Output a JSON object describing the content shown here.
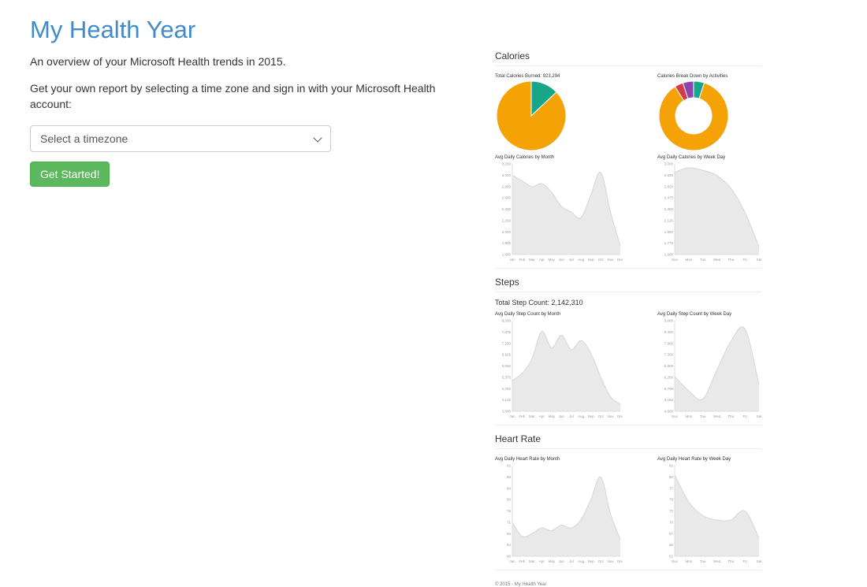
{
  "page": {
    "title": "My Health Year",
    "subtitle": "An overview of your Microsoft Health trends in 2015.",
    "instructions": "Get your own report by selecting a time zone and sign in with your Microsoft Health account:"
  },
  "form": {
    "timezone_placeholder": "Select a timezone",
    "submit_label": "Get Started!"
  },
  "report": {
    "sections": [
      {
        "header": "Calories"
      },
      {
        "header": "Steps",
        "total": "Total Step Count: 2,142,310"
      },
      {
        "header": "Heart Rate"
      }
    ],
    "footer": "© 2015 - My Health Year"
  },
  "colors": {
    "accent_blue": "#428bca",
    "button_green": "#5cb85c",
    "pie_orange": "#f5a206",
    "pie_teal": "#18a68b",
    "pie_red": "#d13b4b",
    "pie_purple": "#8e44ad",
    "area_fill": "#e9e9e9",
    "area_stroke": "#d6d6d6"
  },
  "chart_data": [
    {
      "type": "pie",
      "title": "Total Calories Burned: 923,294",
      "slices": [
        {
          "value": 13,
          "color": "#18a68b"
        },
        {
          "value": 87,
          "color": "#f5a206"
        }
      ]
    },
    {
      "type": "pie",
      "donut": true,
      "title": "Calories Break Down by Activities",
      "slices": [
        {
          "value": 5,
          "color": "#18a68b"
        },
        {
          "value": 86,
          "color": "#f5a206"
        },
        {
          "value": 4,
          "color": "#d13b4b"
        },
        {
          "value": 5,
          "color": "#8e44ad"
        }
      ]
    },
    {
      "type": "area",
      "title": "Avg Daily Calories by Month",
      "categories": [
        "Jan",
        "Feb",
        "Mar",
        "Apr",
        "May",
        "Jun",
        "Jul",
        "Aug",
        "Sep",
        "Oct",
        "Nov",
        "Dec"
      ],
      "values": [
        3000,
        2900,
        2800,
        2850,
        2700,
        2450,
        2350,
        2250,
        2650,
        3050,
        2350,
        1750
      ],
      "ylim": [
        1600,
        3200
      ]
    },
    {
      "type": "area",
      "title": "Avg Daily Calories by Week Day",
      "categories": [
        "Sun",
        "Mon",
        "Tue",
        "Wed",
        "Thu",
        "Fri",
        "Sat"
      ],
      "values": [
        2870,
        2940,
        2900,
        2820,
        2620,
        2250,
        1720
      ],
      "ylim": [
        1600,
        3000
      ]
    },
    {
      "type": "area",
      "title": "Avg Daily Step Count by Month",
      "categories": [
        "Jan",
        "Feb",
        "Mar",
        "Apr",
        "May",
        "Jun",
        "Jul",
        "Aug",
        "Sep",
        "Oct",
        "Nov",
        "Dec"
      ],
      "values": [
        5200,
        5600,
        6400,
        7900,
        7000,
        7700,
        6900,
        7400,
        6700,
        5400,
        4300,
        3900
      ],
      "ylim": [
        3500,
        8500
      ]
    },
    {
      "type": "area",
      "title": "Avg Daily Step Count by Week Day",
      "categories": [
        "Sun",
        "Mon",
        "Tue",
        "Wed",
        "Thu",
        "Fri",
        "Sat"
      ],
      "values": [
        6300,
        5600,
        5200,
        6600,
        8000,
        8600,
        5900
      ],
      "ylim": [
        4600,
        9000
      ]
    },
    {
      "type": "area",
      "title": "Avg Daily Heart Rate by Month",
      "categories": [
        "Jan",
        "Feb",
        "Mar",
        "Apr",
        "May",
        "Jun",
        "Jul",
        "Aug",
        "Sep",
        "Oct",
        "Nov",
        "Dec"
      ],
      "values": [
        72,
        67,
        68,
        70,
        69,
        71,
        70,
        73,
        80,
        88,
        75,
        66
      ],
      "ylim": [
        60,
        92
      ]
    },
    {
      "type": "area",
      "title": "Avg Daily Heart Rate by Week Day",
      "categories": [
        "Sun",
        "Mon",
        "Tue",
        "Wed",
        "Thu",
        "Fri",
        "Sat"
      ],
      "values": [
        80,
        74,
        71,
        70,
        70,
        72,
        66
      ],
      "ylim": [
        62,
        82
      ]
    }
  ]
}
